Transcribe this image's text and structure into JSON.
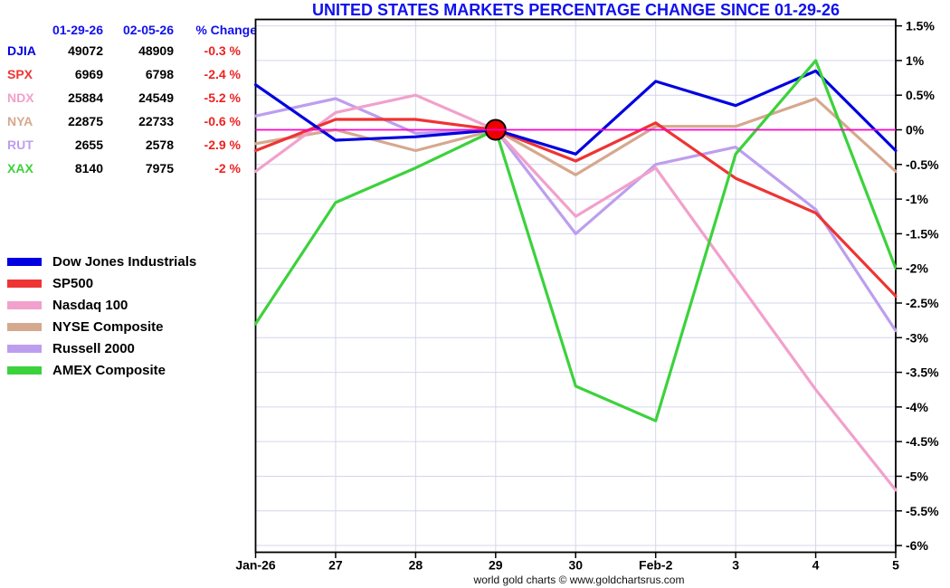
{
  "title": "UNITED STATES MARKETS PERCENTAGE CHANGE SINCE 01-29-26",
  "title_color": "#1010EE",
  "footer": "world gold charts © www.goldchartsrus.com",
  "table": {
    "header_color": "#1010EE",
    "change_color": "#EE2222",
    "value_color": "#000000",
    "headers": [
      "01-29-26",
      "02-05-26",
      "% Change"
    ],
    "rows": [
      {
        "label": "DJIA",
        "label_color": "#0000E0",
        "start": "49072",
        "end": "48909",
        "change": "-0.3 %"
      },
      {
        "label": "SPX",
        "label_color": "#EE3434",
        "start": "6969",
        "end": "6798",
        "change": "-2.4 %"
      },
      {
        "label": "NDX",
        "label_color": "#F2A0CC",
        "start": "25884",
        "end": "24549",
        "change": "-5.2 %"
      },
      {
        "label": "NYA",
        "label_color": "#D6A88E",
        "start": "22875",
        "end": "22733",
        "change": "-0.6 %"
      },
      {
        "label": "RUT",
        "label_color": "#BD9EEE",
        "start": "2655",
        "end": "2578",
        "change": "-2.9 %"
      },
      {
        "label": "XAX",
        "label_color": "#3CD23C",
        "start": "8140",
        "end": "7975",
        "change": "-2 %"
      }
    ]
  },
  "legend": [
    {
      "label": "Dow Jones Industrials",
      "color": "#0000E0"
    },
    {
      "label": "SP500",
      "color": "#EE3434"
    },
    {
      "label": "Nasdaq 100",
      "color": "#F2A0CC"
    },
    {
      "label": "NYSE Composite",
      "color": "#D6A88E"
    },
    {
      "label": "Russell 2000",
      "color": "#BD9EEE"
    },
    {
      "label": "AMEX Composite",
      "color": "#3CD23C"
    }
  ],
  "chart_data": {
    "type": "line",
    "title": "UNITED STATES MARKETS PERCENTAGE CHANGE SINCE 01-29-26",
    "xlabel": "",
    "ylabel": "percent change",
    "categories": [
      "Jan-26",
      "27",
      "28",
      "29",
      "30",
      "Feb-2",
      "3",
      "4",
      "5"
    ],
    "series": [
      {
        "name": "Dow Jones Industrials",
        "ticker": "DJIA",
        "color": "#0000E0",
        "values": [
          0.65,
          -0.15,
          -0.1,
          0,
          -0.35,
          0.7,
          0.35,
          0.85,
          -0.3
        ]
      },
      {
        "name": "SP500",
        "ticker": "SPX",
        "color": "#EE3434",
        "values": [
          -0.3,
          0.15,
          0.15,
          0,
          -0.45,
          0.1,
          -0.7,
          -1.2,
          -2.4
        ]
      },
      {
        "name": "Nasdaq 100",
        "ticker": "NDX",
        "color": "#F2A0CC",
        "values": [
          -0.6,
          0.25,
          0.5,
          0,
          -1.25,
          -0.55,
          -2.15,
          -3.75,
          -5.2
        ]
      },
      {
        "name": "NYSE Composite",
        "ticker": "NYA",
        "color": "#D6A88E",
        "values": [
          -0.2,
          0,
          -0.3,
          0,
          -0.65,
          0.05,
          0.05,
          0.45,
          -0.6
        ]
      },
      {
        "name": "Russell 2000",
        "ticker": "RUT",
        "color": "#BD9EEE",
        "values": [
          0.2,
          0.45,
          -0.05,
          0,
          -1.5,
          -0.5,
          -0.25,
          -1.15,
          -2.9
        ]
      },
      {
        "name": "AMEX Composite",
        "ticker": "XAX",
        "color": "#3CD23C",
        "values": [
          -2.8,
          -1.05,
          -0.55,
          0,
          -3.7,
          -4.2,
          -0.35,
          1.0,
          -2.0
        ]
      }
    ],
    "ylim": [
      -6.1,
      1.59
    ],
    "yticks": [
      1.5,
      1,
      0.5,
      0,
      -0.5,
      -1,
      -1.5,
      -2,
      -2.5,
      -3,
      -3.5,
      -4,
      -4.5,
      -5,
      -5.5,
      -6
    ],
    "ytick_labels": [
      "1.5%",
      "1%",
      "0.5%",
      "0%",
      "-0.5%",
      "-1%",
      "-1.5%",
      "-2%",
      "-2.5%",
      "-3%",
      "-3.5%",
      "-4%",
      "-4.5%",
      "-5%",
      "-5.5%",
      "-6%"
    ],
    "grid": true,
    "gridline_color": "#D4D6EC",
    "zero_line": {
      "value": 0,
      "color": "#FF00C8"
    },
    "marker": {
      "category_index": 3,
      "value": 0,
      "fill": "#EE0000",
      "stroke": "#000000"
    },
    "legend_position": "left",
    "y_axis_side": "right"
  }
}
